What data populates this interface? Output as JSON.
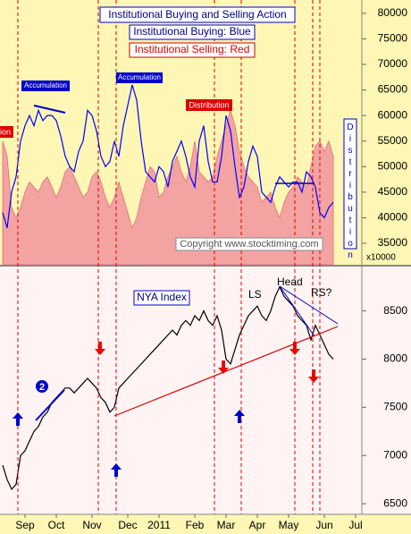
{
  "chart_data": [
    {
      "type": "line",
      "categories": [
        null,
        null,
        null,
        null,
        null,
        "Sep",
        null,
        null,
        null,
        null,
        null,
        null,
        "Oct",
        null,
        null,
        null,
        null,
        null,
        null,
        null,
        "Nov",
        null,
        null,
        null,
        null,
        null,
        null,
        null,
        "Dec",
        null,
        null,
        null,
        null,
        null,
        null,
        "2011",
        null,
        null,
        null,
        null,
        null,
        null,
        null,
        "Feb",
        null,
        null,
        null,
        null,
        null,
        null,
        "Mar",
        null,
        null,
        null,
        null,
        null,
        null,
        "Apr",
        null,
        null,
        null,
        null,
        null,
        null,
        "May",
        null,
        null,
        null,
        null,
        null,
        null,
        null,
        "Jun",
        null,
        null,
        null,
        null,
        null,
        null,
        "Jul"
      ],
      "series": [
        {
          "name": "Institutional Selling",
          "style": "area",
          "color": "#f4a3a3",
          "values": [
            55000,
            52000,
            42000,
            40000,
            42000,
            45000,
            47000,
            46000,
            45000,
            47000,
            48000,
            46000,
            44000,
            46000,
            49000,
            50000,
            48000,
            46000,
            44000,
            45000,
            48000,
            49000,
            47000,
            44000,
            42000,
            44000,
            47000,
            44000,
            41000,
            38000,
            40000,
            44000,
            47000,
            50000,
            49000,
            44000,
            45000,
            48000,
            50000,
            52000,
            49000,
            47000,
            50000,
            55000,
            49000,
            48000,
            47000,
            48000,
            52000,
            55000,
            58000,
            61000,
            58000,
            53000,
            50000,
            48000,
            47000,
            46000,
            43000,
            44000,
            45000,
            42000,
            40000,
            43000,
            45000,
            46000,
            48000,
            47000,
            46000,
            50000,
            54000,
            55000,
            53000,
            55000,
            52000,
            null,
            null,
            null,
            null,
            null
          ]
        },
        {
          "name": "Institutional Buying",
          "style": "line",
          "color": "#0000ff",
          "values": [
            41000,
            38000,
            45000,
            48000,
            55000,
            58000,
            60000,
            58000,
            61000,
            59000,
            60000,
            60000,
            59000,
            56000,
            52000,
            50000,
            49000,
            53000,
            55000,
            61000,
            60000,
            57000,
            52000,
            50000,
            51000,
            55000,
            52000,
            58000,
            62000,
            66000,
            63000,
            55000,
            49000,
            48000,
            47000,
            50000,
            49000,
            46000,
            51000,
            53000,
            55000,
            52000,
            48000,
            46000,
            55000,
            58000,
            51000,
            47000,
            47000,
            52000,
            60000,
            57000,
            50000,
            44000,
            46000,
            51000,
            54000,
            52000,
            45000,
            44000,
            43000,
            46000,
            48000,
            47000,
            46000,
            47000,
            47000,
            45000,
            49000,
            48000,
            46000,
            41000,
            40000,
            42000,
            43000,
            null,
            null,
            null,
            null,
            null
          ]
        }
      ],
      "ylim": [
        30800,
        82600
      ],
      "yticks": [
        35000,
        40000,
        45000,
        50000,
        55000,
        60000,
        65000,
        70000,
        75000,
        80000
      ],
      "y_unit_label": "x10000",
      "background": "#fdf6b4",
      "annotations": [
        "Institutional Buying and Selling Action",
        "Institutional Buying: Blue",
        "Institutional Selling: Red",
        "Accumulation",
        "Accumulation",
        "Distribution",
        "ion",
        "Distribution",
        "Copyright www.stocktiming.com"
      ]
    },
    {
      "type": "line",
      "series": [
        {
          "name": "NYA Index",
          "style": "line",
          "color": "#000000",
          "values": [
            6900,
            6750,
            6650,
            6700,
            7000,
            7050,
            7150,
            7250,
            7300,
            7400,
            7450,
            7550,
            7600,
            7650,
            7700,
            7700,
            7650,
            7700,
            7750,
            7800,
            7750,
            7700,
            7600,
            7550,
            7450,
            7500,
            7700,
            7750,
            7800,
            7850,
            7900,
            7950,
            8000,
            8050,
            8100,
            8150,
            8200,
            8250,
            8300,
            8250,
            8350,
            8400,
            8350,
            8450,
            8400,
            8500,
            8400,
            8350,
            8450,
            8300,
            8000,
            7950,
            8100,
            8250,
            8350,
            8450,
            8500,
            8550,
            8450,
            8400,
            8500,
            8650,
            8750,
            8650,
            8600,
            8550,
            8450,
            8400,
            8350,
            8200,
            8350,
            8250,
            8150,
            8050,
            8000,
            null,
            null,
            null,
            null,
            null
          ]
        }
      ],
      "ylim": [
        6390,
        8960
      ],
      "yticks": [
        6500,
        7000,
        7500,
        8000,
        8500
      ],
      "background": "#fff3f3",
      "annotations": [
        "NYA Index",
        "LS",
        "Head",
        "RS?",
        "2"
      ]
    }
  ]
}
